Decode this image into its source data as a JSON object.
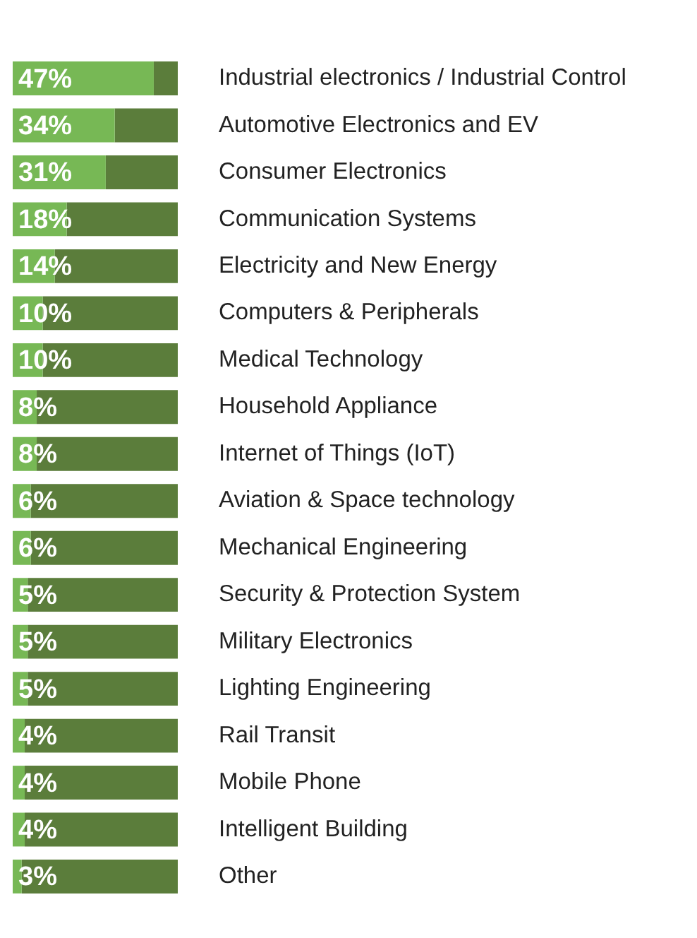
{
  "chart_data": {
    "type": "bar",
    "orientation": "horizontal",
    "categories": [
      "Industrial electronics / Industrial Control",
      "Automotive Electronics and EV",
      "Consumer Electronics",
      "Communication Systems",
      "Electricity and New Energy",
      "Computers & Peripherals",
      "Medical Technology",
      "Household Appliance",
      "Internet of Things (IoT)",
      "Aviation & Space technology",
      "Mechanical Engineering",
      "Security & Protection System",
      "Military Electronics",
      "Lighting Engineering",
      "Rail Transit",
      "Mobile Phone",
      "Intelligent Building",
      "Other"
    ],
    "series": [
      {
        "color": "#77b855",
        "values": [
          47,
          34,
          31,
          18,
          14,
          10,
          10,
          8,
          8,
          6,
          6,
          5,
          5,
          5,
          4,
          4,
          4,
          3
        ],
        "value_labels": [
          "47%",
          "34%",
          "31%",
          "18%",
          "14%",
          "10%",
          "10%",
          "8%",
          "8%",
          "6%",
          "6%",
          "5%",
          "5%",
          "5%",
          "4%",
          "4%",
          "4%",
          "3%"
        ]
      },
      {
        "color": "#5b7d3b",
        "values": [
          8,
          21,
          24,
          37,
          41,
          45,
          45,
          47,
          47,
          49,
          49,
          50,
          50,
          50,
          51,
          51,
          51,
          52
        ]
      }
    ],
    "stacked": true,
    "grid": false,
    "legend": false
  }
}
